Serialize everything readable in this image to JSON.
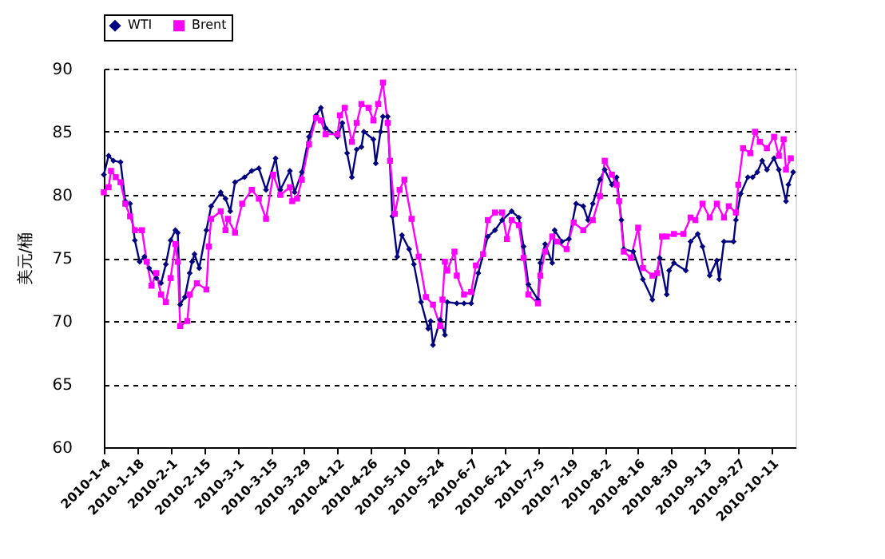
{
  "chart_data": {
    "type": "line",
    "ylabel": "美元/桶",
    "xlim": [
      "2010-01-04",
      "2010-10-21"
    ],
    "xticks": [
      {
        "value": "2010-01-04",
        "label": "2010-1-4"
      },
      {
        "value": "2010-01-18",
        "label": "2010-1-18"
      },
      {
        "value": "2010-02-01",
        "label": "2010-2-1"
      },
      {
        "value": "2010-02-15",
        "label": "2010-2-15"
      },
      {
        "value": "2010-03-01",
        "label": "2010-3-1"
      },
      {
        "value": "2010-03-15",
        "label": "2010-3-15"
      },
      {
        "value": "2010-03-29",
        "label": "2010-3-29"
      },
      {
        "value": "2010-04-12",
        "label": "2010-4-12"
      },
      {
        "value": "2010-04-26",
        "label": "2010-4-26"
      },
      {
        "value": "2010-05-10",
        "label": "2010-5-10"
      },
      {
        "value": "2010-05-24",
        "label": "2010-5-24"
      },
      {
        "value": "2010-06-07",
        "label": "2010-6-7"
      },
      {
        "value": "2010-06-21",
        "label": "2010-6-21"
      },
      {
        "value": "2010-07-05",
        "label": "2010-7-5"
      },
      {
        "value": "2010-07-19",
        "label": "2010-7-19"
      },
      {
        "value": "2010-08-02",
        "label": "2010-8-2"
      },
      {
        "value": "2010-08-16",
        "label": "2010-8-16"
      },
      {
        "value": "2010-08-30",
        "label": "2010-8-30"
      },
      {
        "value": "2010-09-13",
        "label": "2010-9-13"
      },
      {
        "value": "2010-09-27",
        "label": "2010-9-27"
      },
      {
        "value": "2010-10-11",
        "label": "2010-10-11"
      }
    ],
    "ylim": [
      60,
      90
    ],
    "yticks": [
      60,
      65,
      70,
      75,
      80,
      85,
      90
    ],
    "grid": "y",
    "legend": "top",
    "line_style": "solid",
    "series": [
      {
        "name": "WTI",
        "color": "#000080",
        "marker": "diamond",
        "x": [
          "2010-01-04",
          "2010-01-06",
          "2010-01-08",
          "2010-01-11",
          "2010-01-13",
          "2010-01-15",
          "2010-01-17",
          "2010-01-19",
          "2010-01-21",
          "2010-01-23",
          "2010-01-26",
          "2010-01-28",
          "2010-01-30",
          "2010-02-01",
          "2010-02-03",
          "2010-02-04",
          "2010-02-05",
          "2010-02-07",
          "2010-02-09",
          "2010-02-10",
          "2010-02-11",
          "2010-02-13",
          "2010-02-16",
          "2010-02-18",
          "2010-02-22",
          "2010-02-24",
          "2010-02-26",
          "2010-02-28",
          "2010-03-04",
          "2010-03-07",
          "2010-03-10",
          "2010-03-13",
          "2010-03-17",
          "2010-03-19",
          "2010-03-23",
          "2010-03-25",
          "2010-03-28",
          "2010-03-31",
          "2010-04-03",
          "2010-04-05",
          "2010-04-07",
          "2010-04-12",
          "2010-04-14",
          "2010-04-16",
          "2010-04-18",
          "2010-04-20",
          "2010-04-22",
          "2010-04-23",
          "2010-04-27",
          "2010-04-28",
          "2010-04-30",
          "2010-05-01",
          "2010-05-03",
          "2010-05-05",
          "2010-05-07",
          "2010-05-09",
          "2010-05-12",
          "2010-05-14",
          "2010-05-17",
          "2010-05-20",
          "2010-05-21",
          "2010-05-22",
          "2010-05-25",
          "2010-05-27",
          "2010-05-28",
          "2010-06-01",
          "2010-06-04",
          "2010-06-07",
          "2010-06-10",
          "2010-06-14",
          "2010-06-17",
          "2010-06-20",
          "2010-06-24",
          "2010-06-27",
          "2010-06-29",
          "2010-07-01",
          "2010-07-05",
          "2010-07-06",
          "2010-07-08",
          "2010-07-11",
          "2010-07-12",
          "2010-07-15",
          "2010-07-18",
          "2010-07-21",
          "2010-07-24",
          "2010-07-26",
          "2010-07-28",
          "2010-07-31",
          "2010-08-02",
          "2010-08-05",
          "2010-08-07",
          "2010-08-09",
          "2010-08-10",
          "2010-08-14",
          "2010-08-18",
          "2010-08-22",
          "2010-08-25",
          "2010-08-28",
          "2010-08-29",
          "2010-08-31",
          "2010-09-05",
          "2010-09-07",
          "2010-09-10",
          "2010-09-12",
          "2010-09-15",
          "2010-09-18",
          "2010-09-19",
          "2010-09-21",
          "2010-09-25",
          "2010-09-26",
          "2010-09-28",
          "2010-10-01",
          "2010-10-03",
          "2010-10-05",
          "2010-10-07",
          "2010-10-09",
          "2010-10-12",
          "2010-10-14",
          "2010-10-17",
          "2010-10-18",
          "2010-10-20"
        ],
        "values": [
          81.6,
          83.1,
          82.7,
          82.6,
          79.5,
          79.3,
          76.4,
          74.7,
          75.1,
          74.2,
          73.4,
          73.0,
          74.5,
          76.4,
          77.2,
          77.0,
          71.3,
          71.9,
          73.8,
          74.7,
          75.3,
          74.2,
          77.2,
          79.1,
          80.2,
          79.7,
          78.7,
          81.0,
          81.4,
          81.9,
          82.1,
          80.4,
          82.9,
          80.4,
          81.9,
          80.2,
          81.8,
          84.6,
          86.3,
          86.9,
          85.3,
          84.6,
          85.7,
          83.3,
          81.4,
          83.6,
          83.8,
          85.0,
          84.4,
          82.5,
          85.0,
          86.2,
          86.2,
          78.3,
          75.1,
          76.8,
          75.7,
          74.5,
          71.5,
          69.4,
          70.0,
          68.1,
          70.1,
          68.9,
          71.5,
          71.4,
          71.4,
          71.4,
          73.8,
          76.7,
          77.2,
          78.0,
          78.7,
          78.2,
          75.9,
          72.9,
          71.7,
          74.6,
          76.1,
          74.6,
          77.2,
          76.3,
          76.5,
          79.3,
          79.1,
          78.0,
          79.3,
          81.2,
          82.0,
          80.8,
          81.4,
          78.0,
          75.7,
          75.5,
          73.3,
          71.7,
          75.0,
          72.1,
          74.0,
          74.6,
          74.0,
          76.3,
          76.9,
          75.9,
          73.6,
          74.8,
          73.3,
          76.3,
          76.3,
          78.0,
          80.1,
          81.4,
          81.4,
          81.8,
          82.7,
          82.0,
          82.9,
          82.0,
          79.5,
          80.8,
          81.8
        ]
      },
      {
        "name": "Brent",
        "color": "#ff00ff",
        "marker": "square",
        "x": [
          "2010-01-04",
          "2010-01-06",
          "2010-01-07",
          "2010-01-09",
          "2010-01-11",
          "2010-01-13",
          "2010-01-15",
          "2010-01-17",
          "2010-01-20",
          "2010-01-22",
          "2010-01-24",
          "2010-01-26",
          "2010-01-28",
          "2010-01-30",
          "2010-02-01",
          "2010-02-03",
          "2010-02-04",
          "2010-02-05",
          "2010-02-08",
          "2010-02-09",
          "2010-02-12",
          "2010-02-16",
          "2010-02-17",
          "2010-02-18",
          "2010-02-22",
          "2010-02-24",
          "2010-02-25",
          "2010-02-28",
          "2010-03-03",
          "2010-03-07",
          "2010-03-10",
          "2010-03-13",
          "2010-03-16",
          "2010-03-19",
          "2010-03-23",
          "2010-03-24",
          "2010-03-26",
          "2010-03-28",
          "2010-03-31",
          "2010-04-03",
          "2010-04-05",
          "2010-04-07",
          "2010-04-12",
          "2010-04-13",
          "2010-04-15",
          "2010-04-18",
          "2010-04-20",
          "2010-04-22",
          "2010-04-25",
          "2010-04-27",
          "2010-04-29",
          "2010-05-01",
          "2010-05-03",
          "2010-05-04",
          "2010-05-06",
          "2010-05-08",
          "2010-05-10",
          "2010-05-13",
          "2010-05-16",
          "2010-05-19",
          "2010-05-22",
          "2010-05-25",
          "2010-05-26",
          "2010-05-27",
          "2010-05-28",
          "2010-05-31",
          "2010-06-01",
          "2010-06-04",
          "2010-06-07",
          "2010-06-09",
          "2010-06-12",
          "2010-06-14",
          "2010-06-17",
          "2010-06-20",
          "2010-06-22",
          "2010-06-24",
          "2010-06-27",
          "2010-06-29",
          "2010-07-01",
          "2010-07-05",
          "2010-07-06",
          "2010-07-08",
          "2010-07-11",
          "2010-07-13",
          "2010-07-17",
          "2010-07-20",
          "2010-07-24",
          "2010-07-28",
          "2010-07-31",
          "2010-08-02",
          "2010-08-05",
          "2010-08-07",
          "2010-08-08",
          "2010-08-10",
          "2010-08-13",
          "2010-08-16",
          "2010-08-18",
          "2010-08-22",
          "2010-08-24",
          "2010-08-26",
          "2010-08-28",
          "2010-08-31",
          "2010-09-04",
          "2010-09-07",
          "2010-09-09",
          "2010-09-12",
          "2010-09-15",
          "2010-09-18",
          "2010-09-21",
          "2010-09-23",
          "2010-09-26",
          "2010-09-27",
          "2010-09-29",
          "2010-10-02",
          "2010-10-04",
          "2010-10-06",
          "2010-10-09",
          "2010-10-12",
          "2010-10-14",
          "2010-10-16",
          "2010-10-17",
          "2010-10-19"
        ],
        "values": [
          80.2,
          80.6,
          81.9,
          81.4,
          81.0,
          79.3,
          78.3,
          77.2,
          77.2,
          74.7,
          72.8,
          73.8,
          72.1,
          71.5,
          73.4,
          76.1,
          74.7,
          69.6,
          70.0,
          72.1,
          73.0,
          72.5,
          75.9,
          78.1,
          78.7,
          77.2,
          78.1,
          77.0,
          79.3,
          80.4,
          79.7,
          78.1,
          81.6,
          80.0,
          80.6,
          79.5,
          79.7,
          81.2,
          84.0,
          86.1,
          85.9,
          84.8,
          84.8,
          86.3,
          86.9,
          84.2,
          85.7,
          87.2,
          86.9,
          85.9,
          87.2,
          88.9,
          85.7,
          82.7,
          78.5,
          80.4,
          81.2,
          78.1,
          75.1,
          71.9,
          71.3,
          69.6,
          71.7,
          74.7,
          74.0,
          75.5,
          73.6,
          72.1,
          72.3,
          74.4,
          75.3,
          78.0,
          78.6,
          78.6,
          76.5,
          78.0,
          77.6,
          75.0,
          72.1,
          71.4,
          73.6,
          75.5,
          76.7,
          76.3,
          75.7,
          77.8,
          77.2,
          78.0,
          79.9,
          82.7,
          81.6,
          80.8,
          79.5,
          75.5,
          75.0,
          77.4,
          74.2,
          73.6,
          73.8,
          76.7,
          76.7,
          76.9,
          76.9,
          78.2,
          78.0,
          79.3,
          78.2,
          79.3,
          78.2,
          79.1,
          78.6,
          80.8,
          83.7,
          83.3,
          85.0,
          84.2,
          83.7,
          84.6,
          83.1,
          84.4,
          82.0,
          82.9
        ]
      }
    ]
  }
}
